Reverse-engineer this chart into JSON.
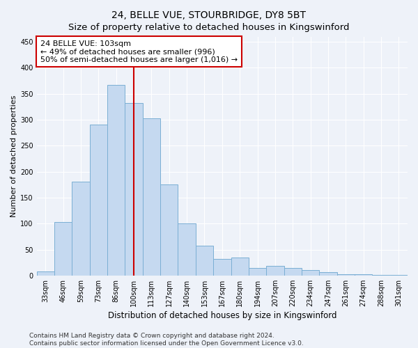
{
  "title": "24, BELLE VUE, STOURBRIDGE, DY8 5BT",
  "subtitle": "Size of property relative to detached houses in Kingswinford",
  "xlabel": "Distribution of detached houses by size in Kingswinford",
  "ylabel": "Number of detached properties",
  "categories": [
    "33sqm",
    "46sqm",
    "59sqm",
    "73sqm",
    "86sqm",
    "100sqm",
    "113sqm",
    "127sqm",
    "140sqm",
    "153sqm",
    "167sqm",
    "180sqm",
    "194sqm",
    "207sqm",
    "220sqm",
    "234sqm",
    "247sqm",
    "261sqm",
    "274sqm",
    "288sqm",
    "301sqm"
  ],
  "values": [
    8,
    103,
    180,
    290,
    367,
    332,
    303,
    175,
    100,
    57,
    32,
    35,
    15,
    18,
    15,
    10,
    7,
    3,
    2,
    1,
    1
  ],
  "bar_color": "#c5d9f0",
  "bar_edge_color": "#7bafd4",
  "vline_x_index": 5,
  "vline_color": "#cc0000",
  "annotation_line1": "24 BELLE VUE: 103sqm",
  "annotation_line2": "← 49% of detached houses are smaller (996)",
  "annotation_line3": "50% of semi-detached houses are larger (1,016) →",
  "annotation_box_color": "white",
  "annotation_box_edge_color": "#cc0000",
  "ylim": [
    0,
    460
  ],
  "yticks": [
    0,
    50,
    100,
    150,
    200,
    250,
    300,
    350,
    400,
    450
  ],
  "footer_line1": "Contains HM Land Registry data © Crown copyright and database right 2024.",
  "footer_line2": "Contains public sector information licensed under the Open Government Licence v3.0.",
  "bg_color": "#eef2f9",
  "plot_bg_color": "#eef2f9",
  "grid_color": "#ffffff",
  "title_fontsize": 10,
  "subtitle_fontsize": 9.5,
  "xlabel_fontsize": 8.5,
  "ylabel_fontsize": 8,
  "tick_fontsize": 7,
  "annotation_fontsize": 8,
  "footer_fontsize": 6.5
}
